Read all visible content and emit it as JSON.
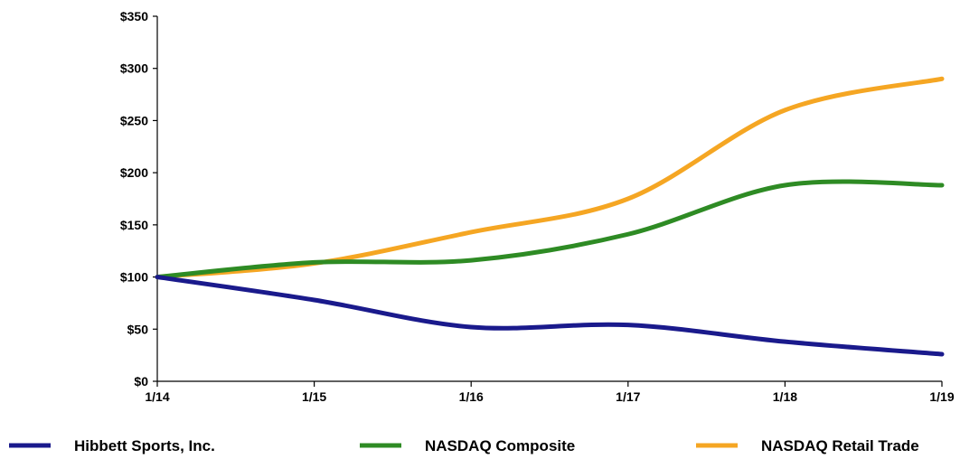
{
  "chart_data": {
    "type": "line",
    "title": "",
    "xlabel": "",
    "ylabel": "",
    "categories": [
      "1/14",
      "1/15",
      "1/16",
      "1/17",
      "1/18",
      "1/19"
    ],
    "y_tick_labels": [
      "$0",
      "$50",
      "$100",
      "$150",
      "$200",
      "$250",
      "$300",
      "$350"
    ],
    "y_ticks": [
      0,
      50,
      100,
      150,
      200,
      250,
      300,
      350
    ],
    "ylim": [
      0,
      350
    ],
    "grid": false,
    "legend_position": "bottom",
    "series": [
      {
        "name": "Hibbett Sports, Inc.",
        "color": "#1a1a8c",
        "values": [
          100,
          78,
          52,
          54,
          38,
          26
        ]
      },
      {
        "name": "NASDAQ Composite",
        "color": "#2e8b24",
        "values": [
          100,
          114,
          116,
          141,
          188,
          188
        ]
      },
      {
        "name": "NASDAQ Retail Trade",
        "color": "#f5a623",
        "values": [
          100,
          113,
          143,
          175,
          260,
          290
        ]
      }
    ]
  }
}
